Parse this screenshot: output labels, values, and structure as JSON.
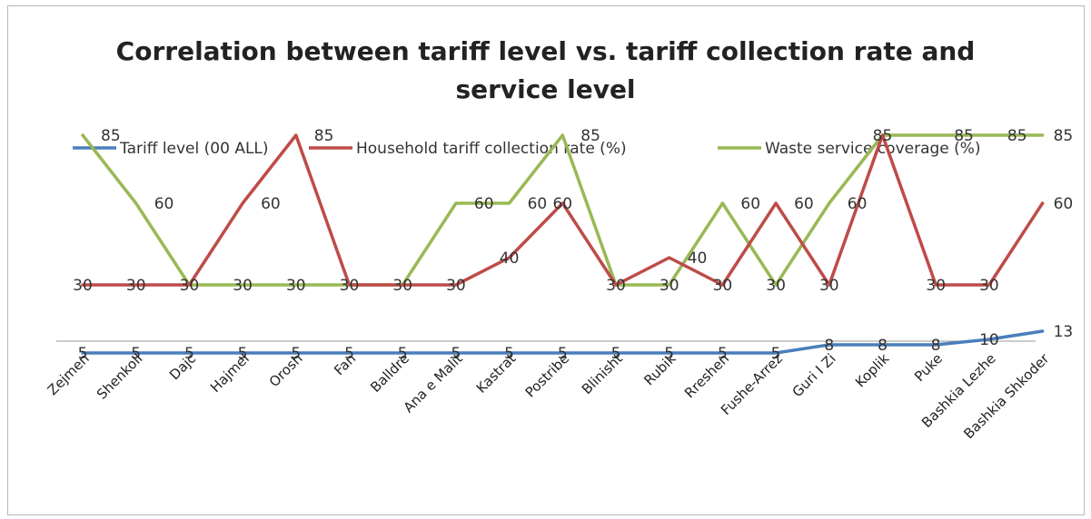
{
  "chart_data": {
    "type": "line",
    "title": "Correlation between tariff level vs. tariff collection rate and service level",
    "title_lines": [
      "Correlation between tariff level vs. tariff collection rate and",
      "service level"
    ],
    "categories": [
      "Zejmen",
      "Shenkoll",
      "Dajc",
      "Hajmel",
      "Orosh",
      "Fan",
      "Balldre",
      "Ana e Malit",
      "Kastrat",
      "Postribe",
      "Blinisht",
      "Rubik",
      "Rreshen",
      "Fushe-Arrez",
      "Guri I Zi",
      "Koplik",
      "Puke",
      "Bashkia Lezhe",
      "Bashkia Shkoder"
    ],
    "series": [
      {
        "name": "Tariff level (00 ALL)",
        "color": "#4a7ebb",
        "values": [
          5,
          5,
          5,
          5,
          5,
          5,
          5,
          5,
          5,
          5,
          5,
          5,
          5,
          5,
          8,
          8,
          8,
          10,
          13
        ]
      },
      {
        "name": "Household tariff collection rate (%)",
        "color": "#be4b48",
        "values": [
          30,
          30,
          30,
          60,
          85,
          30,
          30,
          30,
          40,
          60,
          30,
          40,
          30,
          60,
          30,
          85,
          30,
          30,
          60
        ]
      },
      {
        "name": "Waste service coverage (%)",
        "color": "#98b954",
        "values": [
          85,
          60,
          30,
          30,
          30,
          30,
          30,
          60,
          60,
          85,
          30,
          30,
          60,
          30,
          60,
          85,
          85,
          85,
          85
        ]
      }
    ],
    "legend_position": "top",
    "grid": false,
    "ylim": [
      0,
      100
    ]
  }
}
